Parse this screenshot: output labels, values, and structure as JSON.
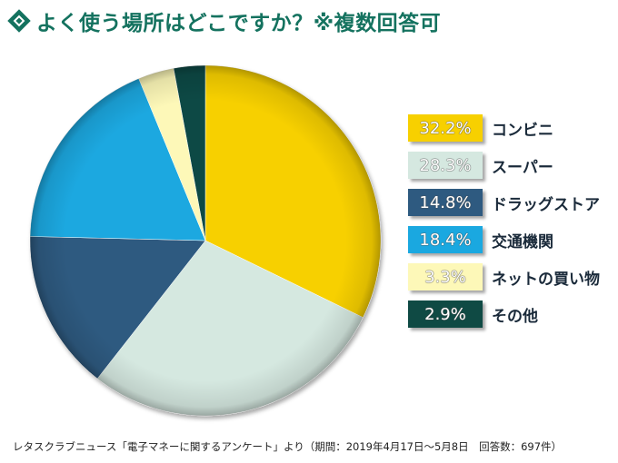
{
  "header": {
    "title": "よく使う場所はどこですか？※複数回答可"
  },
  "chart_data": {
    "type": "pie",
    "title": "よく使う場所はどこですか？※複数回答可",
    "slices": [
      {
        "label": "コンビニ",
        "value": 32.2,
        "value_label": "32.2%",
        "color": "#f7d000",
        "text_color": "#ffffff"
      },
      {
        "label": "スーパー",
        "value": 28.3,
        "value_label": "28.3%",
        "color": "#d5e8e0",
        "text_color": "#ffffff"
      },
      {
        "label": "ドラッグストア",
        "value": 14.8,
        "value_label": "14.8%",
        "color": "#2e5a80",
        "text_color": "#ffffff"
      },
      {
        "label": "交通機関",
        "value": 18.4,
        "value_label": "18.4%",
        "color": "#1aa8e0",
        "text_color": "#ffffff"
      },
      {
        "label": "ネットの買い物",
        "value": 3.3,
        "value_label": "3.3%",
        "color": "#fdf8b8",
        "text_color": "#ffffff"
      },
      {
        "label": "その他",
        "value": 2.9,
        "value_label": "2.9%",
        "color": "#0f4a44",
        "text_color": "#ffffff"
      }
    ],
    "pie_order": [
      "コンビニ",
      "スーパー",
      "ドラッグストア",
      "交通機関",
      "ネットの買い物",
      "その他"
    ],
    "legend_placement": "right"
  },
  "footer": {
    "source": "レタスクラブニュース「電子マネーに関するアンケート」より（期間：2019年4月17日〜5月8日　回答数：697件）"
  },
  "colors": {
    "title": "#14725f",
    "title_icon": "#14725f"
  }
}
